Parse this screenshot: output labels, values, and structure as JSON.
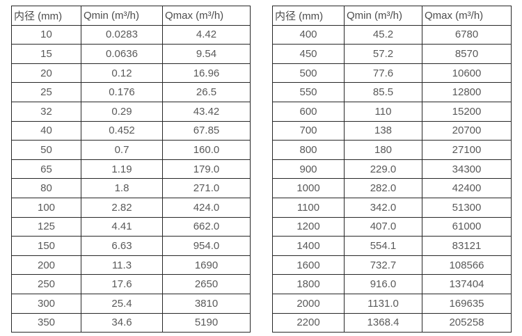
{
  "columns": {
    "diameter": "内径 (mm)",
    "qmin": "Qmin (m³/h)",
    "qmax": "Qmax (m³/h)"
  },
  "tables": [
    {
      "rows": [
        [
          "10",
          "0.0283",
          "4.42"
        ],
        [
          "15",
          "0.0636",
          "9.54"
        ],
        [
          "20",
          "0.12",
          "16.96"
        ],
        [
          "25",
          "0.176",
          "26.5"
        ],
        [
          "32",
          "0.29",
          "43.42"
        ],
        [
          "40",
          "0.452",
          "67.85"
        ],
        [
          "50",
          "0.7",
          "160.0"
        ],
        [
          "65",
          "1.19",
          "179.0"
        ],
        [
          "80",
          "1.8",
          "271.0"
        ],
        [
          "100",
          "2.82",
          "424.0"
        ],
        [
          "125",
          "4.41",
          "662.0"
        ],
        [
          "150",
          "6.63",
          "954.0"
        ],
        [
          "200",
          "11.3",
          "1690"
        ],
        [
          "250",
          "17.6",
          "2650"
        ],
        [
          "300",
          "25.4",
          "3810"
        ],
        [
          "350",
          "34.6",
          "5190"
        ]
      ]
    },
    {
      "rows": [
        [
          "400",
          "45.2",
          "6780"
        ],
        [
          "450",
          "57.2",
          "8570"
        ],
        [
          "500",
          "77.6",
          "10600"
        ],
        [
          "550",
          "85.5",
          "12800"
        ],
        [
          "600",
          "110",
          "15200"
        ],
        [
          "700",
          "138",
          "20700"
        ],
        [
          "800",
          "180",
          "27100"
        ],
        [
          "900",
          "229.0",
          "34300"
        ],
        [
          "1000",
          "282.0",
          "42400"
        ],
        [
          "1100",
          "342.0",
          "51300"
        ],
        [
          "1200",
          "407.0",
          "61000"
        ],
        [
          "1400",
          "554.1",
          "83121"
        ],
        [
          "1600",
          "732.7",
          "108566"
        ],
        [
          "1800",
          "916.0",
          "137404"
        ],
        [
          "2000",
          "1131.0",
          "169635"
        ],
        [
          "2200",
          "1368.4",
          "205258"
        ]
      ]
    }
  ]
}
